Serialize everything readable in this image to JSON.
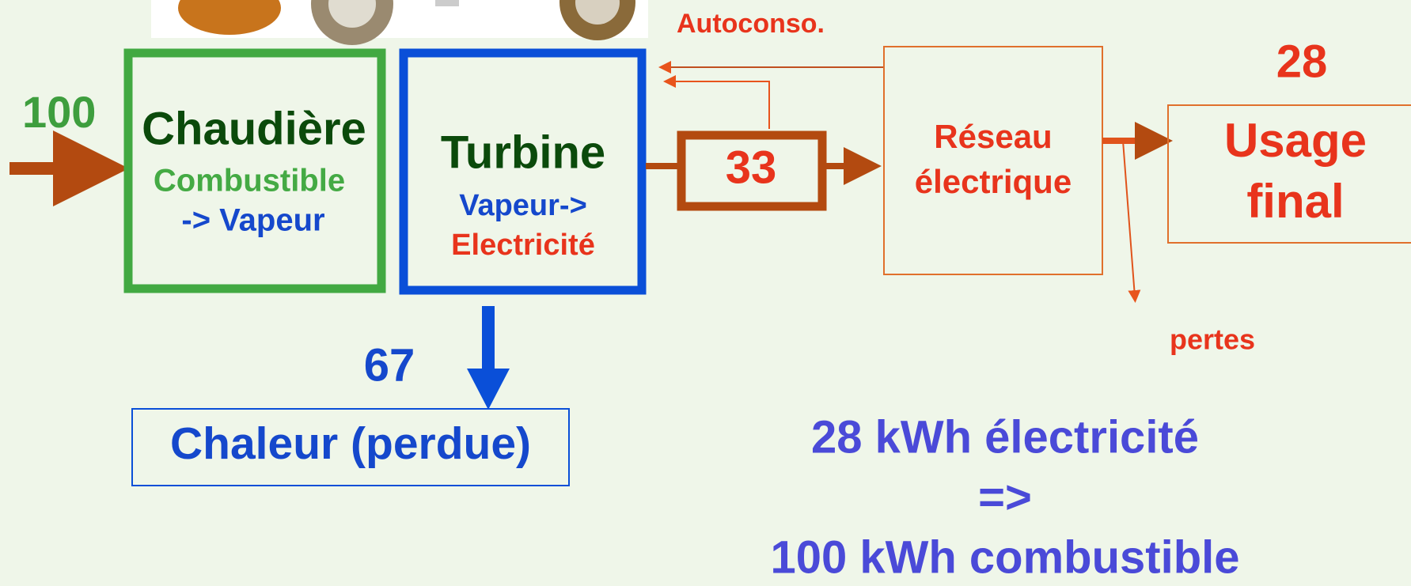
{
  "labels": {
    "autoconso": "Autoconso.",
    "input": "100",
    "output_display": "28",
    "turbine_out": "33",
    "heat_out": "67",
    "losses": "pertes"
  },
  "nodes": [
    {
      "title": "Chaudière",
      "line1": "Combustible",
      "line2": "-> Vapeur"
    },
    {
      "title": "Turbine",
      "line1": "Vapeur->",
      "line2": "Electricité"
    },
    {
      "line1": "Réseau",
      "line2": "électrique"
    },
    {
      "line1": "Usage",
      "line2": "final"
    },
    {
      "title": "Chaleur (perdue)"
    }
  ],
  "summary": [
    "28 kWh électricité",
    "=>",
    "100 kWh combustible"
  ]
}
